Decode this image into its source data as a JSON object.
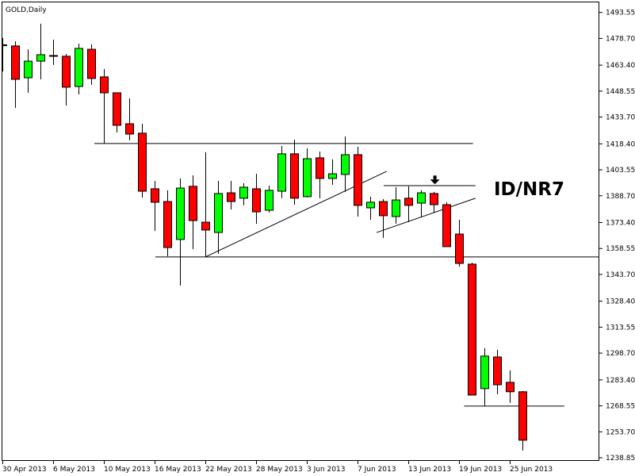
{
  "chart_data": {
    "type": "candlestick",
    "title": "GOLD,Daily",
    "colors": {
      "bull": "#00FF00",
      "bear": "#FF0000",
      "outline": "#000000",
      "background": "#FFFFFF"
    },
    "ylim": [
      1238.85,
      1493.55
    ],
    "y_ticks": [
      "1493.55",
      "1478.70",
      "1463.40",
      "1448.55",
      "1433.70",
      "1418.40",
      "1403.55",
      "1388.70",
      "1373.40",
      "1358.55",
      "1343.70",
      "1328.40",
      "1313.55",
      "1298.70",
      "1283.40",
      "1268.55",
      "1253.70",
      "1238.85"
    ],
    "x_tick_labels": [
      {
        "bar": 0,
        "label": "30 Apr 2013"
      },
      {
        "bar": 4,
        "label": "6 May 2013"
      },
      {
        "bar": 8,
        "label": "10 May 2013"
      },
      {
        "bar": 12,
        "label": "16 May 2013"
      },
      {
        "bar": 16,
        "label": "22 May 2013"
      },
      {
        "bar": 20,
        "label": "28 May 2013"
      },
      {
        "bar": 24,
        "label": "3 Jun 2013"
      },
      {
        "bar": 28,
        "label": "7 Jun 2013"
      },
      {
        "bar": 32,
        "label": "13 Jun 2013"
      },
      {
        "bar": 36,
        "label": "19 Jun 2013"
      },
      {
        "bar": 40,
        "label": "25 Jun 2013"
      }
    ],
    "candles": [
      [
        1474.8,
        1478.9,
        1459.8,
        1474.8
      ],
      [
        1474.4,
        1477.1,
        1439.0,
        1455.3
      ],
      [
        1456.2,
        1472.5,
        1447.6,
        1465.7
      ],
      [
        1465.7,
        1487.1,
        1455.3,
        1469.4
      ],
      [
        1468.7,
        1478.0,
        1463.5,
        1468.7
      ],
      [
        1468.5,
        1469.8,
        1440.3,
        1450.8
      ],
      [
        1451.2,
        1475.7,
        1446.7,
        1473.0
      ],
      [
        1472.5,
        1475.3,
        1452.1,
        1455.8
      ],
      [
        1456.7,
        1461.2,
        1418.6,
        1447.6
      ],
      [
        1447.6,
        1447.6,
        1424.9,
        1429.0
      ],
      [
        1429.9,
        1444.4,
        1420.4,
        1424.0
      ],
      [
        1424.5,
        1429.9,
        1387.7,
        1391.3
      ],
      [
        1392.7,
        1397.2,
        1368.6,
        1385.0
      ],
      [
        1385.4,
        1391.8,
        1354.1,
        1359.1
      ],
      [
        1363.7,
        1398.6,
        1337.3,
        1393.1
      ],
      [
        1394.1,
        1400.4,
        1358.2,
        1374.5
      ],
      [
        1373.6,
        1413.6,
        1353.7,
        1369.1
      ],
      [
        1367.7,
        1397.2,
        1355.5,
        1390.0
      ],
      [
        1390.4,
        1397.2,
        1380.9,
        1385.4
      ],
      [
        1387.3,
        1395.9,
        1383.2,
        1393.6
      ],
      [
        1392.7,
        1401.3,
        1372.7,
        1379.5
      ],
      [
        1380.4,
        1394.5,
        1379.1,
        1391.8
      ],
      [
        1391.3,
        1417.2,
        1387.3,
        1412.7
      ],
      [
        1412.7,
        1420.8,
        1383.6,
        1387.3
      ],
      [
        1388.2,
        1415.8,
        1387.7,
        1409.9
      ],
      [
        1410.4,
        1414.0,
        1387.3,
        1398.6
      ],
      [
        1398.6,
        1409.5,
        1395.0,
        1401.3
      ],
      [
        1400.9,
        1422.6,
        1390.9,
        1412.2
      ],
      [
        1412.2,
        1416.7,
        1376.8,
        1383.2
      ],
      [
        1381.8,
        1388.2,
        1375.0,
        1385.0
      ],
      [
        1385.4,
        1386.8,
        1364.6,
        1377.3
      ],
      [
        1376.8,
        1393.6,
        1372.7,
        1386.3
      ],
      [
        1387.3,
        1394.1,
        1373.6,
        1383.2
      ],
      [
        1384.5,
        1391.8,
        1376.4,
        1390.4
      ],
      [
        1390.0,
        1390.9,
        1379.1,
        1383.6
      ],
      [
        1383.6,
        1385.0,
        1359.6,
        1359.6
      ],
      [
        1366.8,
        1375.0,
        1348.2,
        1350.0
      ],
      [
        1349.6,
        1350.5,
        1274.7,
        1274.7
      ],
      [
        1278.4,
        1301.5,
        1268.4,
        1297.0
      ],
      [
        1296.5,
        1300.6,
        1275.2,
        1280.6
      ],
      [
        1282.0,
        1288.8,
        1270.2,
        1276.6
      ],
      [
        1276.6,
        1277.0,
        1243.0,
        1248.9
      ]
    ],
    "candle_fields": [
      "open",
      "high",
      "low",
      "close"
    ],
    "trendlines": [
      {
        "from": [
          7.25,
          1418.6
        ],
        "to": [
          37.1,
          1418.6
        ]
      },
      {
        "from": [
          12.06,
          1353.7
        ],
        "to": [
          47.0,
          1353.7
        ]
      },
      {
        "from": [
          16.0,
          1353.7
        ],
        "to": [
          30.3,
          1402.7
        ]
      },
      {
        "from": [
          30.06,
          1394.5
        ],
        "to": [
          37.3,
          1394.5
        ]
      },
      {
        "from": [
          29.5,
          1367.7
        ],
        "to": [
          37.3,
          1387.3
        ]
      },
      {
        "from": [
          36.4,
          1268.4
        ],
        "to": [
          44.3,
          1268.4
        ]
      }
    ],
    "arrow_marker": {
      "bar": 34.1,
      "price": 1398.0,
      "icon": "arrow-down"
    },
    "annotation": "ID/NR7"
  }
}
